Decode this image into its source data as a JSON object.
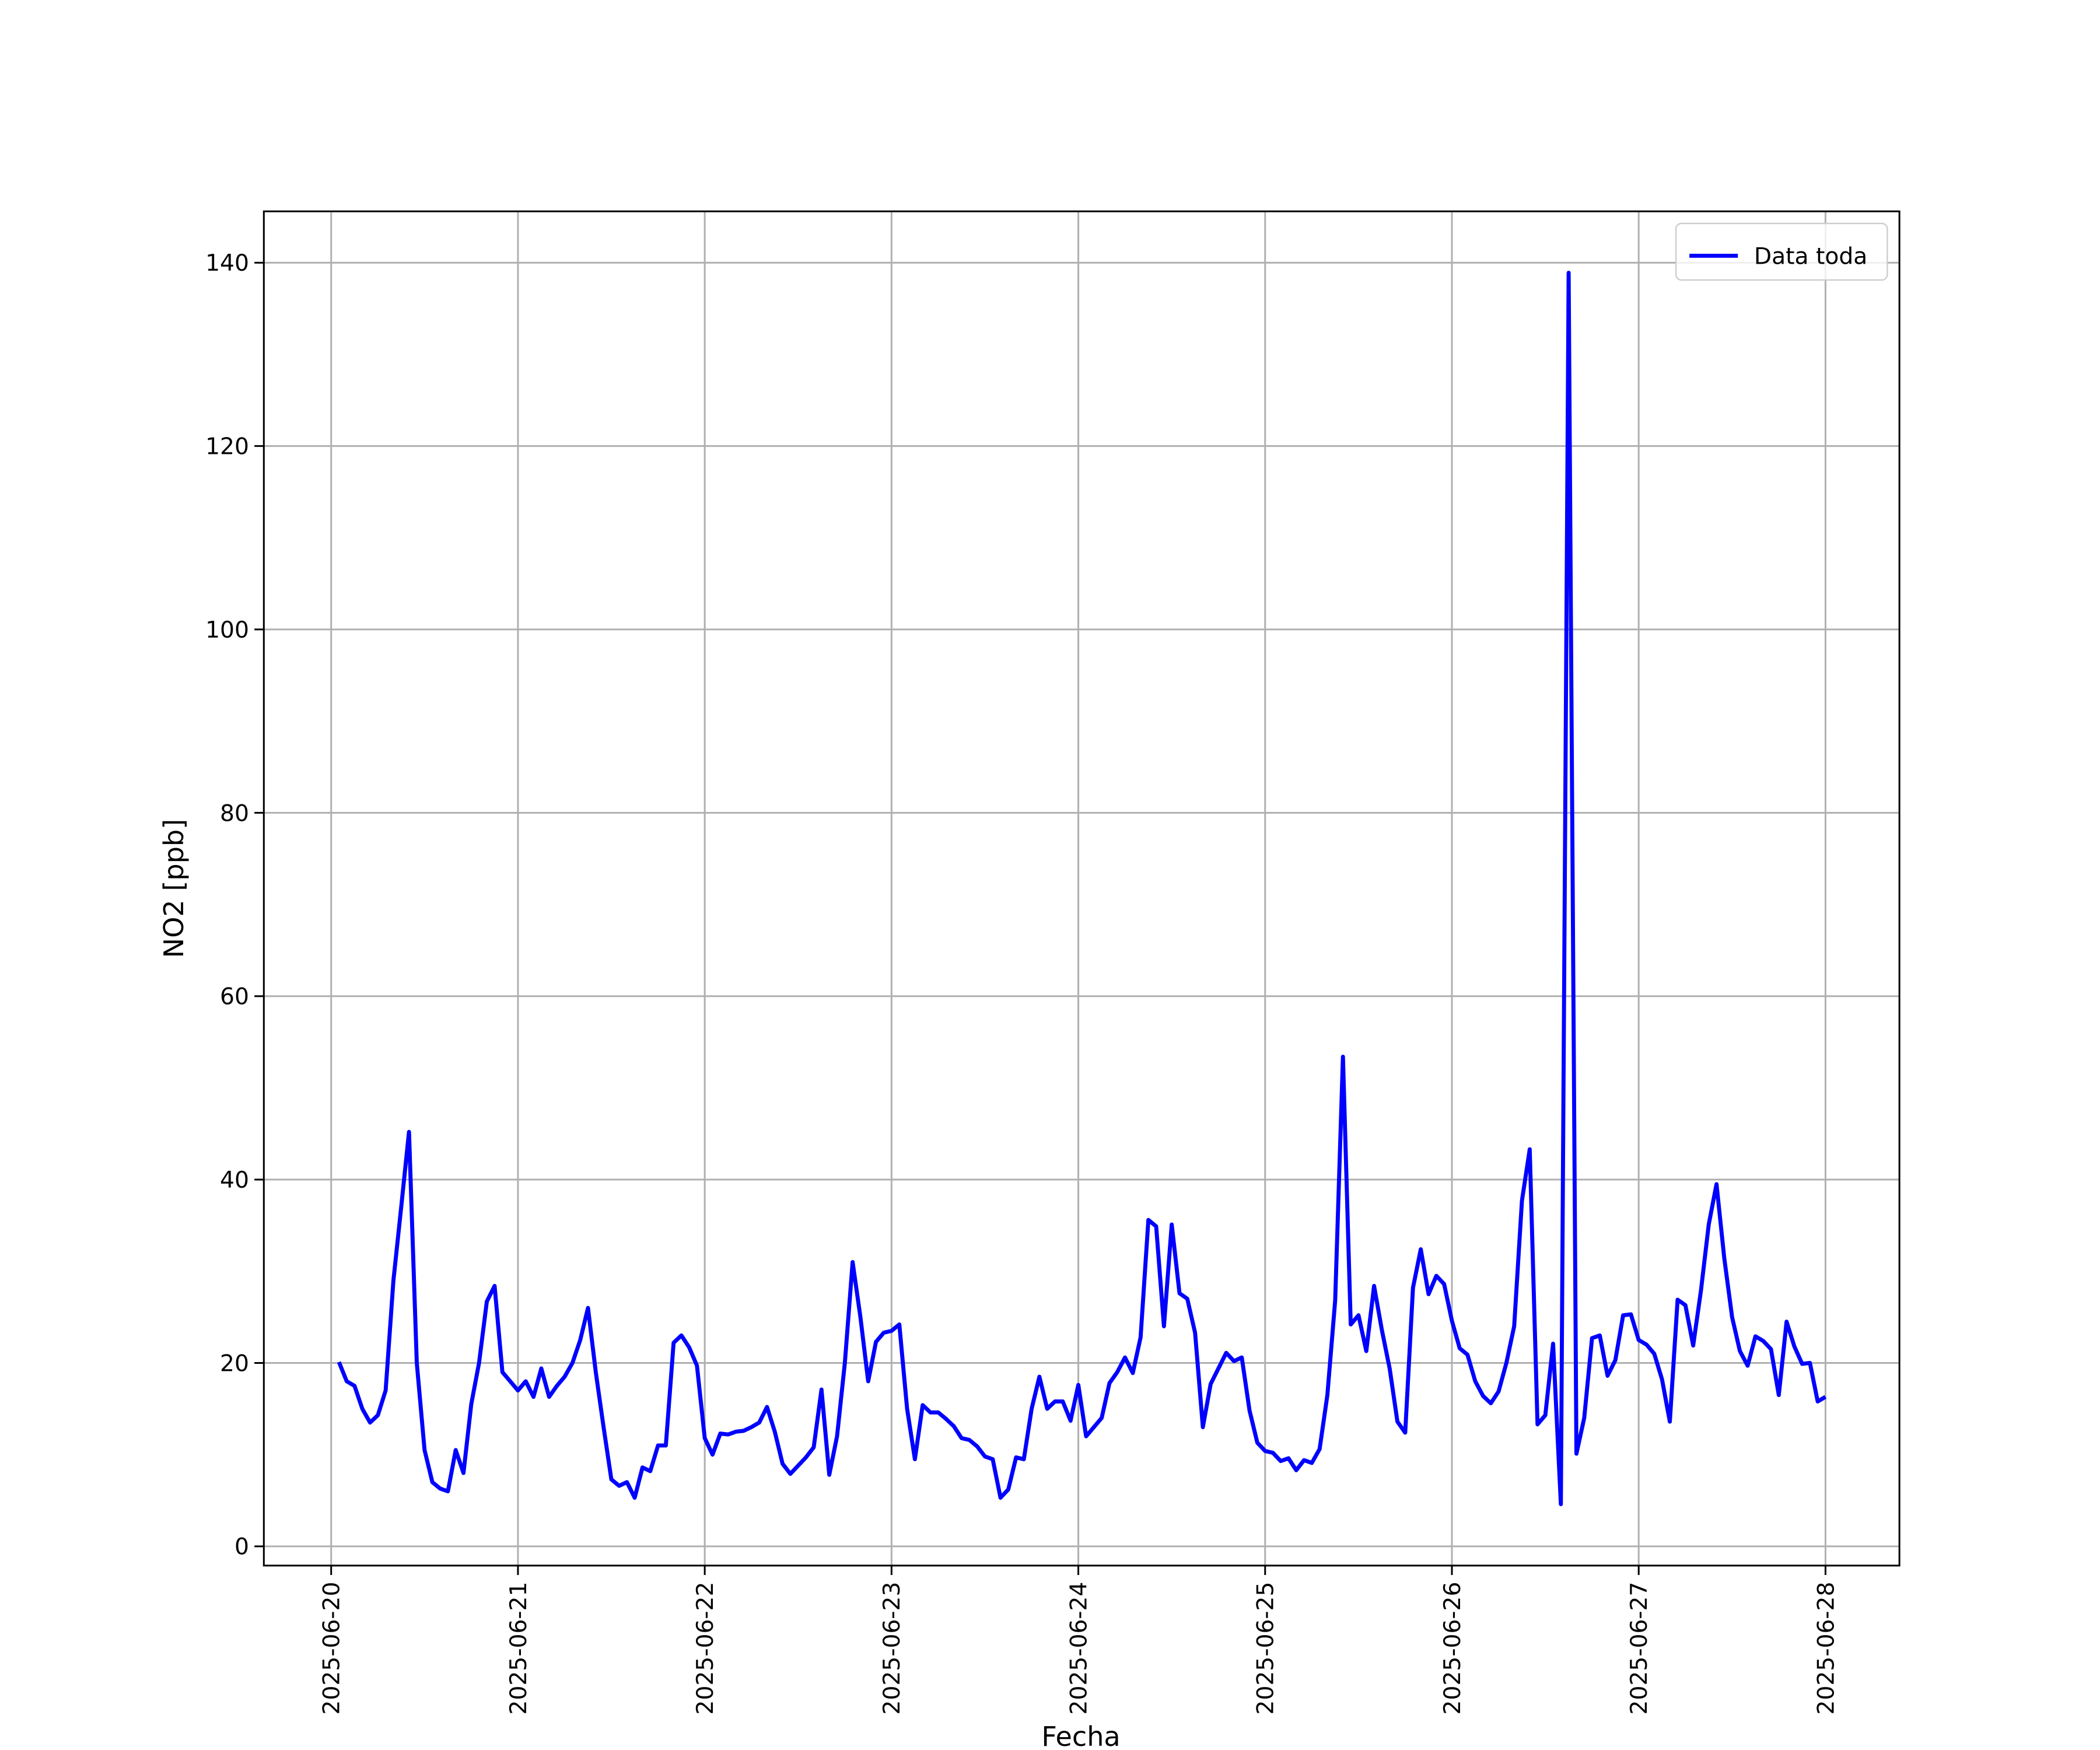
{
  "chart_data": {
    "type": "line",
    "xlabel": "Fecha",
    "ylabel": "NO2 [ppb]",
    "x": [
      "2025-06-20 01:00",
      "2025-06-20 02:00",
      "2025-06-20 03:00",
      "2025-06-20 04:00",
      "2025-06-20 05:00",
      "2025-06-20 06:00",
      "2025-06-20 07:00",
      "2025-06-20 08:00",
      "2025-06-20 09:00",
      "2025-06-20 10:00",
      "2025-06-20 11:00",
      "2025-06-20 12:00",
      "2025-06-20 13:00",
      "2025-06-20 14:00",
      "2025-06-20 15:00",
      "2025-06-20 16:00",
      "2025-06-20 17:00",
      "2025-06-20 18:00",
      "2025-06-20 19:00",
      "2025-06-20 20:00",
      "2025-06-20 21:00",
      "2025-06-20 22:00",
      "2025-06-20 23:00",
      "2025-06-21 00:00",
      "2025-06-21 01:00",
      "2025-06-21 02:00",
      "2025-06-21 03:00",
      "2025-06-21 04:00",
      "2025-06-21 05:00",
      "2025-06-21 06:00",
      "2025-06-21 07:00",
      "2025-06-21 08:00",
      "2025-06-21 09:00",
      "2025-06-21 10:00",
      "2025-06-21 11:00",
      "2025-06-21 12:00",
      "2025-06-21 13:00",
      "2025-06-21 14:00",
      "2025-06-21 15:00",
      "2025-06-21 16:00",
      "2025-06-21 17:00",
      "2025-06-21 18:00",
      "2025-06-21 19:00",
      "2025-06-21 20:00",
      "2025-06-21 21:00",
      "2025-06-21 22:00",
      "2025-06-21 23:00",
      "2025-06-22 00:00",
      "2025-06-22 01:00",
      "2025-06-22 02:00",
      "2025-06-22 03:00",
      "2025-06-22 04:00",
      "2025-06-22 05:00",
      "2025-06-22 06:00",
      "2025-06-22 07:00",
      "2025-06-22 08:00",
      "2025-06-22 09:00",
      "2025-06-22 10:00",
      "2025-06-22 11:00",
      "2025-06-22 12:00",
      "2025-06-22 13:00",
      "2025-06-22 14:00",
      "2025-06-22 15:00",
      "2025-06-22 16:00",
      "2025-06-22 17:00",
      "2025-06-22 18:00",
      "2025-06-22 19:00",
      "2025-06-22 20:00",
      "2025-06-22 21:00",
      "2025-06-22 22:00",
      "2025-06-22 23:00",
      "2025-06-23 00:00",
      "2025-06-23 01:00",
      "2025-06-23 02:00",
      "2025-06-23 03:00",
      "2025-06-23 04:00",
      "2025-06-23 05:00",
      "2025-06-23 06:00",
      "2025-06-23 07:00",
      "2025-06-23 08:00",
      "2025-06-23 09:00",
      "2025-06-23 10:00",
      "2025-06-23 11:00",
      "2025-06-23 12:00",
      "2025-06-23 13:00",
      "2025-06-23 14:00",
      "2025-06-23 15:00",
      "2025-06-23 16:00",
      "2025-06-23 17:00",
      "2025-06-23 18:00",
      "2025-06-23 19:00",
      "2025-06-23 20:00",
      "2025-06-23 21:00",
      "2025-06-23 22:00",
      "2025-06-23 23:00",
      "2025-06-24 00:00",
      "2025-06-24 01:00",
      "2025-06-24 02:00",
      "2025-06-24 03:00",
      "2025-06-24 04:00",
      "2025-06-24 05:00",
      "2025-06-24 06:00",
      "2025-06-24 07:00",
      "2025-06-24 08:00",
      "2025-06-24 09:00",
      "2025-06-24 10:00",
      "2025-06-24 11:00",
      "2025-06-24 12:00",
      "2025-06-24 13:00",
      "2025-06-24 14:00",
      "2025-06-24 15:00",
      "2025-06-24 16:00",
      "2025-06-24 17:00",
      "2025-06-24 18:00",
      "2025-06-24 19:00",
      "2025-06-24 20:00",
      "2025-06-24 21:00",
      "2025-06-24 22:00",
      "2025-06-24 23:00",
      "2025-06-25 00:00",
      "2025-06-25 01:00",
      "2025-06-25 02:00",
      "2025-06-25 03:00",
      "2025-06-25 04:00",
      "2025-06-25 05:00",
      "2025-06-25 06:00",
      "2025-06-25 07:00",
      "2025-06-25 08:00",
      "2025-06-25 09:00",
      "2025-06-25 10:00",
      "2025-06-25 11:00",
      "2025-06-25 12:00",
      "2025-06-25 13:00",
      "2025-06-25 14:00",
      "2025-06-25 15:00",
      "2025-06-25 16:00",
      "2025-06-25 17:00",
      "2025-06-25 18:00",
      "2025-06-25 19:00",
      "2025-06-25 20:00",
      "2025-06-25 21:00",
      "2025-06-25 22:00",
      "2025-06-25 23:00",
      "2025-06-26 00:00",
      "2025-06-26 01:00",
      "2025-06-26 02:00",
      "2025-06-26 03:00",
      "2025-06-26 04:00",
      "2025-06-26 05:00",
      "2025-06-26 06:00",
      "2025-06-26 07:00",
      "2025-06-26 08:00",
      "2025-06-26 09:00",
      "2025-06-26 10:00",
      "2025-06-26 11:00",
      "2025-06-26 12:00",
      "2025-06-26 13:00",
      "2025-06-26 14:00",
      "2025-06-26 15:00",
      "2025-06-26 16:00",
      "2025-06-26 17:00",
      "2025-06-26 18:00",
      "2025-06-26 19:00",
      "2025-06-26 20:00",
      "2025-06-26 21:00",
      "2025-06-26 22:00",
      "2025-06-26 23:00",
      "2025-06-27 00:00",
      "2025-06-27 01:00",
      "2025-06-27 02:00",
      "2025-06-27 03:00",
      "2025-06-27 04:00",
      "2025-06-27 05:00",
      "2025-06-27 06:00",
      "2025-06-27 07:00",
      "2025-06-27 08:00",
      "2025-06-27 09:00",
      "2025-06-27 10:00",
      "2025-06-27 11:00",
      "2025-06-27 12:00",
      "2025-06-27 13:00",
      "2025-06-27 14:00",
      "2025-06-27 15:00",
      "2025-06-27 16:00",
      "2025-06-27 17:00",
      "2025-06-27 18:00",
      "2025-06-27 19:00",
      "2025-06-27 20:00",
      "2025-06-27 21:00",
      "2025-06-27 22:00",
      "2025-06-27 23:00",
      "2025-06-28 00:00"
    ],
    "series": [
      {
        "name": "Data toda",
        "color": "#0000ff",
        "values": [
          20.1,
          18,
          17.5,
          15,
          13.5,
          14.3,
          17,
          29,
          37,
          45.2,
          20,
          10.5,
          7,
          6.3,
          6,
          10.5,
          8,
          15.5,
          20,
          26.7,
          28.4,
          19,
          18,
          17,
          18,
          16.3,
          19.4,
          16.3,
          17.5,
          18.5,
          20,
          22.5,
          26,
          19,
          13,
          7.3,
          6.6,
          7,
          5.3,
          8.6,
          8.2,
          11,
          11,
          22.2,
          23,
          21.7,
          19.7,
          11.8,
          10,
          12.3,
          12.2,
          12.5,
          12.6,
          13,
          13.5,
          15.2,
          12.5,
          9,
          7.9,
          8.8,
          9.7,
          10.8,
          17.1,
          7.8,
          12,
          20,
          31,
          25,
          18,
          22.3,
          23.3,
          23.5,
          24.2,
          15,
          9.5,
          15.4,
          14.6,
          14.6,
          13.9,
          13.1,
          11.8,
          11.6,
          10.9,
          9.8,
          9.5,
          5.3,
          6.2,
          9.7,
          9.5,
          15,
          18.5,
          15,
          15.8,
          15.8,
          13.7,
          17.6,
          12,
          13,
          14,
          17.8,
          19,
          20.6,
          18.9,
          22.8,
          35.6,
          34.9,
          24,
          35.1,
          27.6,
          27,
          23.3,
          13,
          17.7,
          19.4,
          21.1,
          20.2,
          20.6,
          14.8,
          11.3,
          10.4,
          10.2,
          9.3,
          9.6,
          8.3,
          9.4,
          9.1,
          10.6,
          16.5,
          26.8,
          53.4,
          24.2,
          25.2,
          21.3,
          28.4,
          23.6,
          19.4,
          13.6,
          12.4,
          28.2,
          32.4,
          27.5,
          29.5,
          28.6,
          24.6,
          21.6,
          20.9,
          18,
          16.4,
          15.6,
          16.9,
          20,
          24,
          37.7,
          43.3,
          13.3,
          14.3,
          22.1,
          4.6,
          138.9,
          10.1,
          14,
          22.7,
          23,
          18.6,
          20.3,
          25.2,
          25.3,
          22.5,
          22,
          21,
          18.2,
          13.6,
          26.9,
          26.3,
          21.9,
          27.9,
          35.1,
          39.5,
          31.4,
          25,
          21.3,
          19.7,
          22.9,
          22.4,
          21.5,
          16.5,
          24.5,
          21.8,
          19.9,
          20,
          15.8,
          16.3
        ]
      }
    ],
    "xlim": [
      "2025-06-19 15:21",
      "2025-06-28 09:30"
    ],
    "xticks": [
      "2025-06-20",
      "2025-06-21",
      "2025-06-22",
      "2025-06-23",
      "2025-06-24",
      "2025-06-25",
      "2025-06-26",
      "2025-06-27",
      "2025-06-28"
    ],
    "ylim": [
      -2.1,
      145.6
    ],
    "yticks": [
      0,
      20,
      40,
      60,
      80,
      100,
      120,
      140
    ],
    "grid": true,
    "legend": "upper right"
  }
}
